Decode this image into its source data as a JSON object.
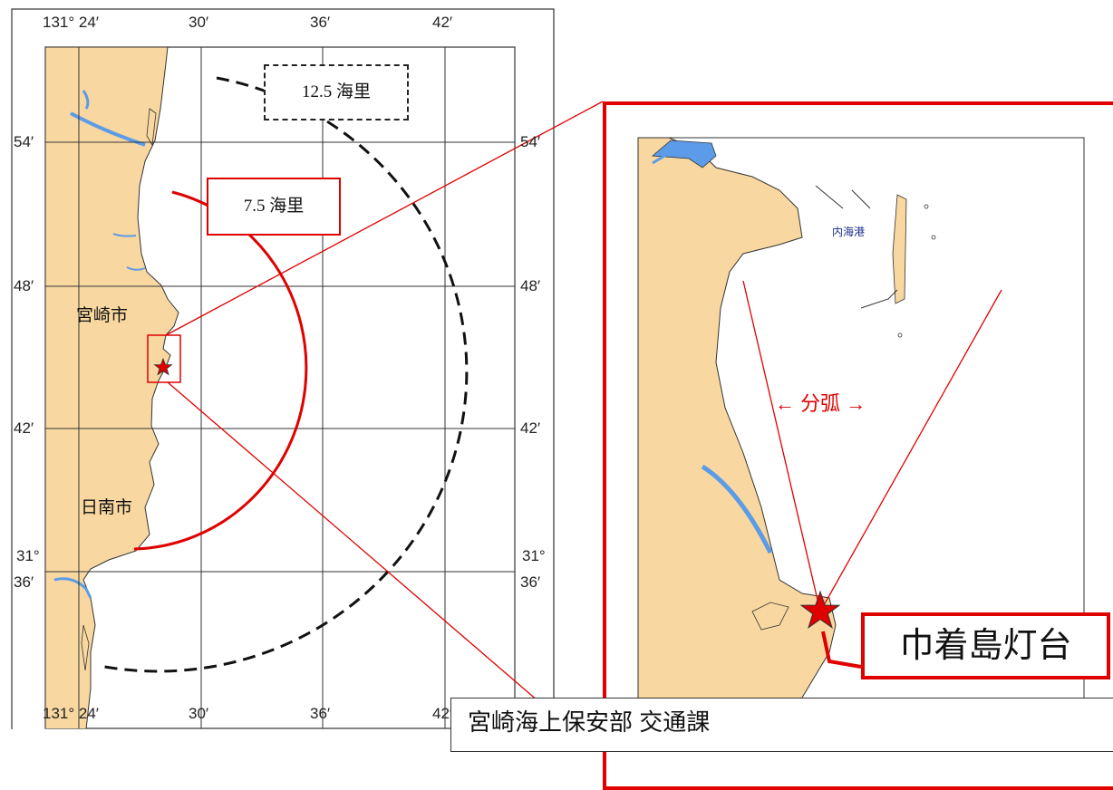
{
  "map": {
    "longitude_top": [
      "131° 24′",
      "30′",
      "36′",
      "42′"
    ],
    "longitude_bottom": [
      "131° 24′",
      "30′",
      "36′",
      "42′"
    ],
    "latitude_left": [
      "54′",
      "48′",
      "42′",
      "31°",
      "36′"
    ],
    "latitude_right": [
      "54′",
      "48′",
      "42′",
      "31°",
      "36′"
    ],
    "places": {
      "miyazaki": "宮崎市",
      "nichinan": "日南市"
    },
    "ranges": {
      "outer": "12.5 海里",
      "inner": "7.5 海里"
    },
    "colors": {
      "land": "#f8d8a0",
      "water": "#5b9be8",
      "range_inner": "#e00000",
      "range_outer": "#111111"
    }
  },
  "inset": {
    "harbor": "内海港",
    "sector": "← 分弧 →",
    "lighthouse": "巾着島灯台"
  },
  "credit": "宮崎海上保安部 交通課"
}
